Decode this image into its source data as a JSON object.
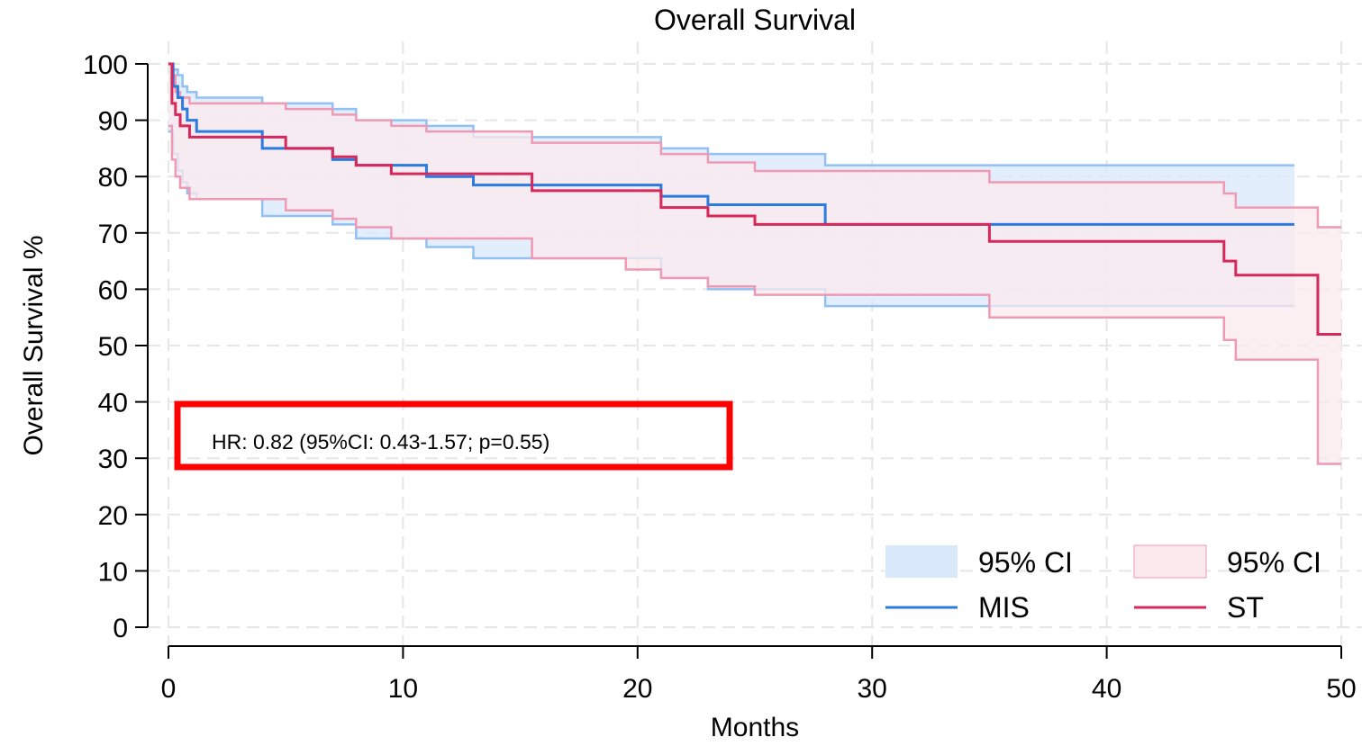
{
  "chart_data": {
    "type": "line",
    "subtype": "kaplan-meier",
    "title": "Overall Survival",
    "xlabel": "Months",
    "ylabel": "Overall Survival %",
    "xlim": [
      0,
      50
    ],
    "ylim": [
      0,
      100
    ],
    "xticks": [
      0,
      10,
      20,
      30,
      40,
      50
    ],
    "yticks": [
      0,
      10,
      20,
      30,
      40,
      50,
      60,
      70,
      80,
      90,
      100
    ],
    "grid": true,
    "legend_position": "bottom-right",
    "legend": [
      {
        "label": "95% CI",
        "kind": "band",
        "series": "MIS"
      },
      {
        "label": "95% CI",
        "kind": "band",
        "series": "ST"
      },
      {
        "label": "MIS",
        "kind": "line",
        "series": "MIS"
      },
      {
        "label": "ST",
        "kind": "line",
        "series": "ST"
      }
    ],
    "annotation": "HR: 0.82 (95%CI: 0.43-1.57; p=0.55)",
    "annotation_box_color": "#ff0000",
    "series": [
      {
        "name": "MIS",
        "color": "#2b7be0",
        "band_fill": "#d9e8fb",
        "band_edge": "#92c0f3",
        "x": [
          0,
          0.2,
          0.4,
          0.6,
          0.8,
          1.2,
          4,
          7,
          8,
          11,
          13,
          15.5,
          21,
          23,
          28,
          48
        ],
        "y": [
          100,
          96,
          94,
          92,
          90,
          88,
          85,
          83,
          82,
          80,
          78.5,
          78.5,
          76.5,
          75,
          71.5,
          71.5
        ],
        "lower": [
          88,
          84,
          81,
          79,
          77,
          76,
          73,
          71.5,
          69,
          67.5,
          65.5,
          65.5,
          62,
          60,
          57,
          57
        ],
        "upper": [
          100,
          99,
          98,
          96,
          95,
          94,
          93,
          92,
          90,
          89,
          87,
          87,
          85,
          84,
          82,
          82
        ]
      },
      {
        "name": "ST",
        "color": "#d6285a",
        "band_fill": "#fbe9ee",
        "band_edge": "#ee9ab4",
        "x": [
          0,
          0.15,
          0.3,
          0.5,
          0.9,
          5,
          7,
          8,
          9.5,
          11,
          15.5,
          19.5,
          21,
          23,
          25,
          35,
          45,
          45.5,
          49,
          50
        ],
        "y": [
          100,
          93,
          91,
          89,
          87,
          85,
          83.5,
          82,
          80.5,
          80.5,
          77.5,
          77.5,
          74.5,
          73,
          71.5,
          68.5,
          65,
          62.5,
          52,
          52
        ],
        "lower": [
          89,
          83,
          80,
          78,
          76,
          74,
          72.5,
          71,
          69,
          69,
          65.5,
          63.5,
          62,
          60.5,
          59,
          55,
          51,
          47.5,
          29,
          29
        ],
        "upper": [
          100,
          98,
          95,
          94,
          93,
          92,
          91,
          90,
          89,
          88,
          86,
          86,
          84,
          82.5,
          81,
          79,
          77,
          74.5,
          71,
          71
        ]
      }
    ]
  }
}
